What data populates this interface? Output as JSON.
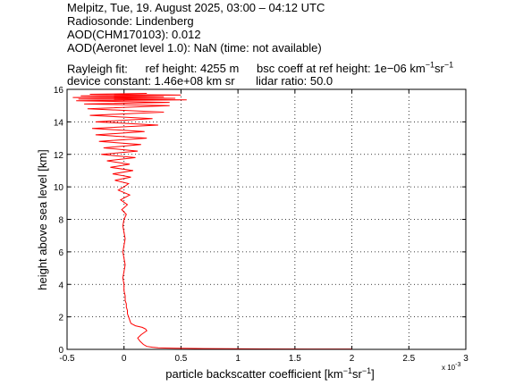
{
  "header": {
    "line1": "Melpitz, Tue, 19. August 2025, 03:00 – 04:12 UTC",
    "line2": "Radiosonde: Lindenberg",
    "line3": "AOD(CHM170103): 0.012",
    "line4": "AOD(Aeronet level 1.0): NaN   (time: not available)",
    "rayleigh_label": "Rayleigh fit:",
    "ref_height": "ref height: 4255 m",
    "bsc_coeff_prefix": "bsc coeff at ref height: 1e−06 km",
    "device_constant": "device constant: 1.46e+08 km sr",
    "lidar_ratio": "lidar ratio: 50.0"
  },
  "chart_data": {
    "type": "line",
    "xlabel_prefix": "particle backscatter coefficient [km",
    "ylabel": "height above sea level [km]",
    "x_exponent_label": "x 10",
    "x_exponent": "-3",
    "xlim": [
      -0.5,
      3
    ],
    "ylim": [
      0,
      16
    ],
    "x_ticks": [
      "-0.5",
      "0",
      "0.5",
      "1",
      "1.5",
      "2",
      "2.5",
      "3"
    ],
    "y_ticks": [
      "0",
      "2",
      "4",
      "6",
      "8",
      "10",
      "12",
      "14",
      "16"
    ],
    "grid": true,
    "color": "#ff0000",
    "series": [
      {
        "x": [
          2.0,
          1.6,
          1.2,
          0.9,
          0.7,
          0.55,
          0.45,
          0.36,
          0.3,
          0.25,
          0.2,
          0.17,
          0.14,
          0.12,
          0.15,
          0.18,
          0.2,
          0.19,
          0.16,
          0.1,
          0.06,
          0.05,
          0.04,
          0.03,
          0.03,
          0.02,
          0.02,
          0.01,
          0.01,
          0.0,
          0.0,
          -0.01,
          0.0,
          0.01,
          0.0,
          -0.01,
          0.0,
          0.01,
          0.0,
          -0.01,
          0.0,
          0.02,
          -0.02,
          0.03,
          -0.03,
          0.05,
          -0.05,
          0.0,
          0.04,
          -0.08,
          0.06,
          -0.1,
          0.08,
          -0.12,
          0.05,
          -0.15,
          0.1,
          -0.2,
          0.12,
          -0.18,
          0.15,
          -0.22,
          0.2,
          -0.25,
          0.18,
          -0.28,
          0.3,
          -0.25,
          0.25,
          -0.3,
          0.35,
          -0.32,
          0.4,
          -0.35,
          0.4,
          -0.42,
          0.55,
          -0.4,
          0.45,
          -0.45,
          0.35,
          -0.38,
          0.5,
          -0.3,
          0.2
        ],
        "y": [
          0.02,
          0.02,
          0.03,
          0.04,
          0.05,
          0.06,
          0.07,
          0.08,
          0.1,
          0.13,
          0.18,
          0.3,
          0.5,
          0.7,
          0.9,
          1.05,
          1.15,
          1.25,
          1.35,
          1.45,
          1.6,
          1.8,
          2.0,
          2.2,
          2.4,
          2.6,
          2.8,
          3.0,
          3.3,
          3.6,
          4.0,
          4.4,
          4.8,
          5.2,
          5.6,
          6.0,
          6.4,
          6.8,
          7.2,
          7.6,
          8.0,
          8.3,
          8.6,
          8.9,
          9.2,
          9.5,
          9.8,
          10.0,
          10.2,
          10.4,
          10.6,
          10.8,
          11.0,
          11.2,
          11.4,
          11.6,
          11.8,
          12.0,
          12.2,
          12.4,
          12.6,
          12.8,
          13.0,
          13.2,
          13.4,
          13.6,
          13.8,
          14.0,
          14.2,
          14.4,
          14.6,
          14.8,
          15.0,
          15.1,
          15.2,
          15.3,
          15.35,
          15.4,
          15.45,
          15.5,
          15.55,
          15.6,
          15.65,
          15.7,
          15.75
        ]
      }
    ]
  }
}
